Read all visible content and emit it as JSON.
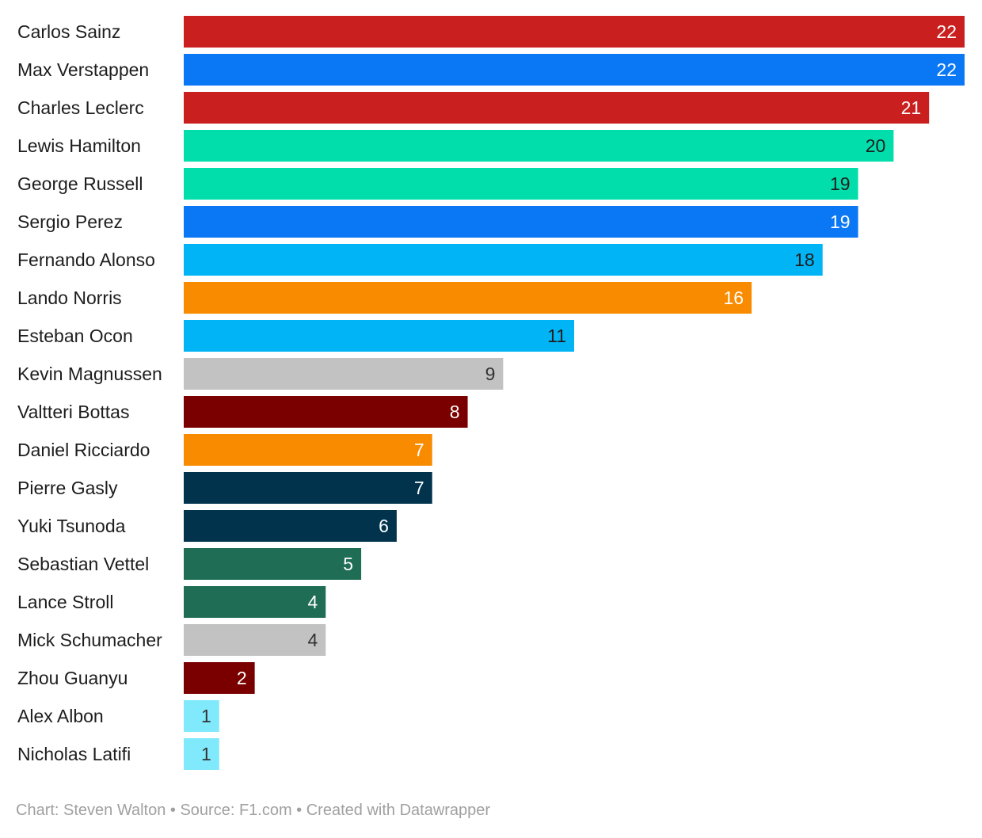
{
  "chart_data": {
    "type": "bar",
    "orientation": "horizontal",
    "categories": [
      "Carlos Sainz",
      "Max Verstappen",
      "Charles Leclerc",
      "Lewis Hamilton",
      "George Russell",
      "Sergio Perez",
      "Fernando Alonso",
      "Lando Norris",
      "Esteban Ocon",
      "Kevin Magnussen",
      "Valtteri Bottas",
      "Daniel Ricciardo",
      "Pierre Gasly",
      "Yuki Tsunoda",
      "Sebastian Vettel",
      "Lance Stroll",
      "Mick Schumacher",
      "Zhou Guanyu",
      "Alex Albon",
      "Nicholas Latifi"
    ],
    "values": [
      22,
      22,
      21,
      20,
      19,
      19,
      18,
      16,
      11,
      9,
      8,
      7,
      7,
      6,
      5,
      4,
      4,
      2,
      1,
      1
    ],
    "colors": [
      "#c91f1f",
      "#0a78f5",
      "#c91f1f",
      "#02ddac",
      "#02ddac",
      "#0a78f5",
      "#01b4f5",
      "#f98b00",
      "#01b4f5",
      "#c2c2c2",
      "#7a0000",
      "#f98b00",
      "#01334d",
      "#01334d",
      "#1f6d55",
      "#1f6d55",
      "#c2c2c2",
      "#7a0000",
      "#80e9fc",
      "#80e9fc"
    ],
    "label_colors": [
      "#ffffff",
      "#ffffff",
      "#ffffff",
      "#1d1d1d",
      "#1d1d1d",
      "#ffffff",
      "#1d1d1d",
      "#ffffff",
      "#1d1d1d",
      "#333333",
      "#ffffff",
      "#ffffff",
      "#ffffff",
      "#ffffff",
      "#ffffff",
      "#ffffff",
      "#333333",
      "#ffffff",
      "#333333",
      "#333333"
    ],
    "xlim": [
      0,
      22
    ],
    "grid": false,
    "title": "",
    "xlabel": "",
    "ylabel": ""
  },
  "footer": {
    "text": "Chart: Steven Walton • Source: F1.com • Created with Datawrapper"
  }
}
